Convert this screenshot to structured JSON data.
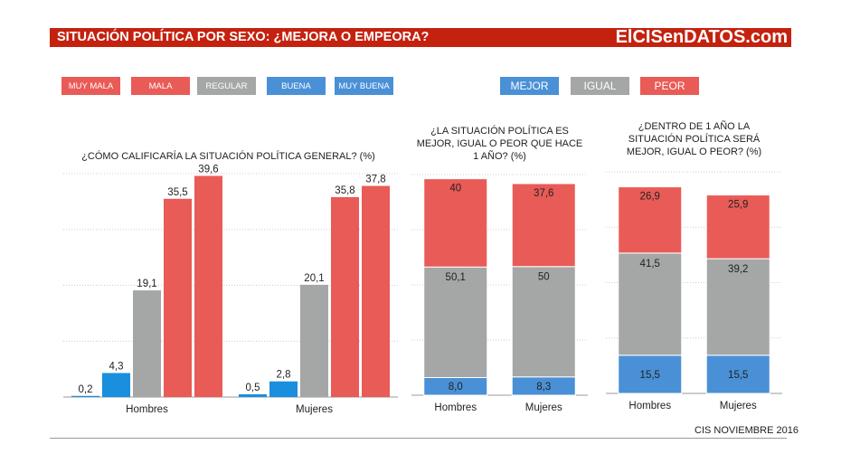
{
  "header": {
    "title": "SITUACIÓN POLÍTICA POR SEXO: ¿MEJORA O EMPEORA?",
    "brand": "ElCISenDATOS.com"
  },
  "legend1": [
    {
      "label": "MUY MALA",
      "color": "#e95b57"
    },
    {
      "label": "MALA",
      "color": "#e95b57"
    },
    {
      "label": "REGULAR",
      "color": "#a4a7a6"
    },
    {
      "label": "BUENA",
      "color": "#4a90d6"
    },
    {
      "label": "MUY BUENA",
      "color": "#4a90d6"
    }
  ],
  "legend2": [
    {
      "label": "MEJOR",
      "color": "#4a90d6"
    },
    {
      "label": "IGUAL",
      "color": "#a4a7a6"
    },
    {
      "label": "PEOR",
      "color": "#e95b57"
    }
  ],
  "footer": "CIS NOVIEMBRE 2016",
  "chart_data": [
    {
      "type": "bar",
      "title": "¿CÓMO CALIFICARÍA LA SITUACIÓN POLÍTICA GENERAL? (%)",
      "categories": [
        "Hombres",
        "Mujeres"
      ],
      "ylim": [
        0,
        40
      ],
      "grid": true,
      "series": [
        {
          "values": [
            0.2,
            0.5
          ],
          "labels": [
            "0,2",
            "0,5"
          ],
          "color": "#1a8fdd"
        },
        {
          "values": [
            4.3,
            2.8
          ],
          "labels": [
            "4,3",
            "2,8"
          ],
          "color": "#1a8fdd"
        },
        {
          "values": [
            19.1,
            20.1
          ],
          "labels": [
            "19,1",
            "20,1"
          ],
          "color": "#a4a7a6"
        },
        {
          "values": [
            35.5,
            35.8
          ],
          "labels": [
            "35,5",
            "35,8"
          ],
          "color": "#e95b57"
        },
        {
          "values": [
            39.6,
            37.8
          ],
          "labels": [
            "39,6",
            "37,8"
          ],
          "color": "#e95b57"
        }
      ]
    },
    {
      "type": "bar",
      "stacked": true,
      "title": "¿LA SITUACIÓN POLÍTICA ES MEJOR, IGUAL O PEOR QUE HACE 1 AÑO? (%)",
      "categories": [
        "Hombres",
        "Mujeres"
      ],
      "ylim": [
        0,
        100
      ],
      "grid": true,
      "series": [
        {
          "values": [
            8.0,
            8.3
          ],
          "labels": [
            "8,0",
            "8,3"
          ],
          "color": "#4a90d6"
        },
        {
          "values": [
            50.1,
            50
          ],
          "labels": [
            "50,1",
            "50"
          ],
          "color": "#a4a7a6"
        },
        {
          "values": [
            40,
            37.6
          ],
          "labels": [
            "40",
            "37,6"
          ],
          "color": "#e95b57"
        }
      ]
    },
    {
      "type": "bar",
      "stacked": true,
      "title": "¿DENTRO DE 1 AÑO LA SITUACIÓN POLÍTICA SERÁ MEJOR, IGUAL O PEOR? (%)",
      "categories": [
        "Hombres",
        "Mujeres"
      ],
      "ylim": [
        0,
        90
      ],
      "grid": true,
      "series": [
        {
          "values": [
            15.5,
            15.5
          ],
          "labels": [
            "15,5",
            "15,5"
          ],
          "color": "#4a90d6"
        },
        {
          "values": [
            41.5,
            39.2
          ],
          "labels": [
            "41,5",
            "39,2"
          ],
          "color": "#a4a7a6"
        },
        {
          "values": [
            26.9,
            25.9
          ],
          "labels": [
            "26,9",
            "25,9"
          ],
          "color": "#e95b57"
        }
      ]
    }
  ]
}
